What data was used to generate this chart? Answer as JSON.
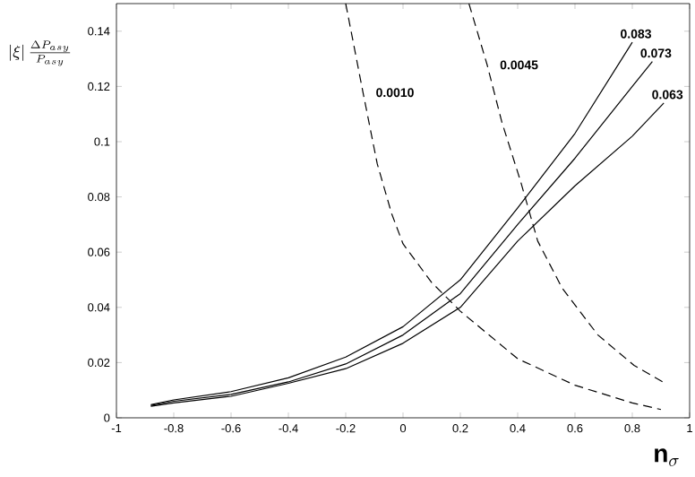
{
  "chart_data": {
    "type": "line",
    "xlabel": "\\mathbf{n_{\\sigma}}",
    "ylabel": "\\left|\\xi\\right|\\frac{\\Delta P_{asy}}{P_{asy}}",
    "xlim": [
      -1,
      1
    ],
    "ylim": [
      0,
      0.15
    ],
    "xticks": [
      -1,
      -0.8,
      -0.6,
      -0.4,
      -0.2,
      0,
      0.2,
      0.4,
      0.6,
      0.8,
      1
    ],
    "yticks": [
      0,
      0.02,
      0.04,
      0.06,
      0.08,
      0.1,
      0.12,
      0.14
    ],
    "grid": false,
    "series": [
      {
        "name": "0.083",
        "color": "#000000",
        "line_style": "solid",
        "x": [
          -0.88,
          -0.8,
          -0.6,
          -0.4,
          -0.2,
          0,
          0.2,
          0.4,
          0.6,
          0.8
        ],
        "values": [
          0.0048,
          0.0065,
          0.0095,
          0.0145,
          0.022,
          0.033,
          0.05,
          0.076,
          0.103,
          0.136
        ]
      },
      {
        "name": "0.073",
        "color": "#000000",
        "line_style": "solid",
        "x": [
          -0.88,
          -0.8,
          -0.6,
          -0.4,
          -0.2,
          0,
          0.2,
          0.4,
          0.6,
          0.8,
          0.87
        ],
        "values": [
          0.0045,
          0.006,
          0.0085,
          0.013,
          0.0195,
          0.03,
          0.045,
          0.07,
          0.094,
          0.12,
          0.129
        ]
      },
      {
        "name": "0.063",
        "color": "#000000",
        "line_style": "solid",
        "x": [
          -0.88,
          -0.8,
          -0.6,
          -0.4,
          -0.2,
          0,
          0.2,
          0.4,
          0.6,
          0.8,
          0.91
        ],
        "values": [
          0.0042,
          0.0054,
          0.0078,
          0.0125,
          0.0178,
          0.027,
          0.04,
          0.064,
          0.084,
          0.102,
          0.114
        ]
      },
      {
        "name": "0.0010",
        "color": "#000000",
        "line_style": "dashed",
        "x": [
          -0.2,
          -0.14,
          -0.09,
          -0.04,
          0,
          0.1,
          0.2,
          0.4,
          0.6,
          0.8,
          0.9
        ],
        "values": [
          0.15,
          0.118,
          0.092,
          0.074,
          0.063,
          0.049,
          0.0386,
          0.0214,
          0.0118,
          0.0054,
          0.003
        ]
      },
      {
        "name": "0.0045",
        "color": "#000000",
        "line_style": "dashed",
        "x": [
          0.23,
          0.293,
          0.345,
          0.41,
          0.47,
          0.555,
          0.68,
          0.806,
          0.91
        ],
        "values": [
          0.15,
          0.128,
          0.107,
          0.0857,
          0.064,
          0.047,
          0.03,
          0.019,
          0.0128
        ]
      }
    ]
  }
}
